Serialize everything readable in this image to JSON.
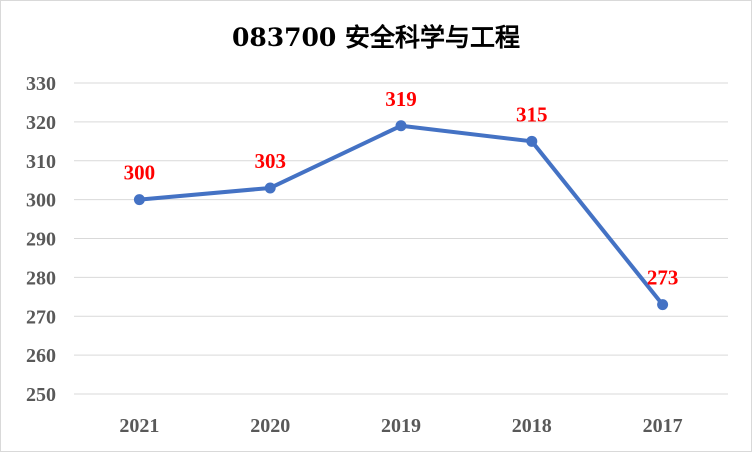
{
  "chart_data": {
    "type": "line",
    "title": "083700 安全科学与工程",
    "categories": [
      "2021",
      "2020",
      "2019",
      "2018",
      "2017"
    ],
    "series": [
      {
        "values": [
          300,
          303,
          319,
          315,
          273
        ]
      }
    ],
    "data_labels": [
      "300",
      "303",
      "319",
      "315",
      "273"
    ],
    "yticks": [
      "250",
      "260",
      "270",
      "280",
      "290",
      "300",
      "310",
      "320",
      "330"
    ],
    "ylim": [
      250,
      330
    ],
    "grid": true,
    "legend": "none",
    "colors": {
      "line": "#4472c4",
      "label": "#ff0000",
      "grid": "#d9d9d9",
      "tick": "#595959"
    }
  }
}
